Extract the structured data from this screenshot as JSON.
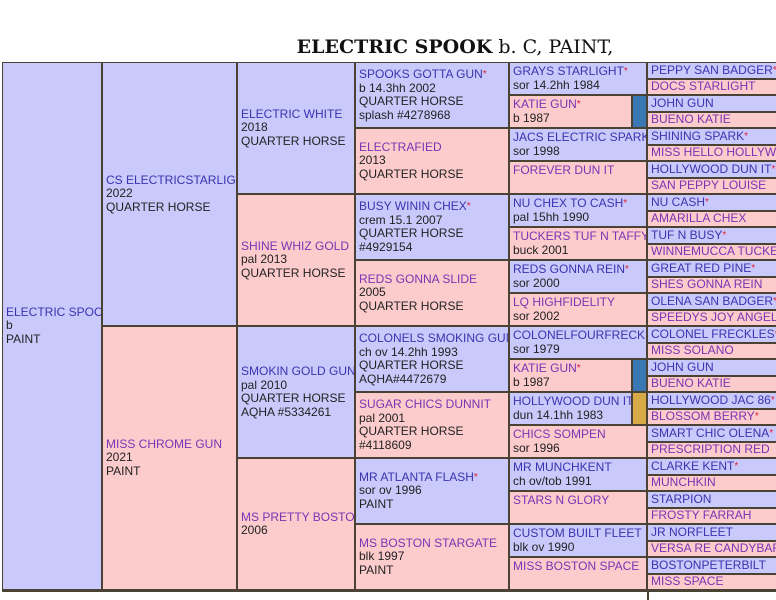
{
  "title": {
    "name": "ELECTRIC SPOOK",
    "desc": " b. C, PAINT,"
  },
  "colors": {
    "sire_bg": "#c9c9fb",
    "dam_bg": "#fccbcb",
    "border": "#4a4232",
    "star": "#e0203a",
    "bar_blue": "#3a78b4",
    "bar_gold": "#d7aa48"
  },
  "generations": [
    [
      {
        "name": "ELECTRIC SPOOK",
        "lines": [
          "b",
          "PAINT"
        ]
      }
    ],
    [
      {
        "name": "CS ELECTRICSTARLIGHT",
        "lines": [
          "2022",
          "QUARTER HORSE"
        ]
      },
      {
        "name": "MISS CHROME GUN",
        "lines": [
          "2021",
          "PAINT"
        ]
      }
    ],
    [
      {
        "name": "ELECTRIC WHITE",
        "lines": [
          "2018",
          "QUARTER HORSE"
        ]
      },
      {
        "name": "SHINE WHIZ GOLD",
        "lines": [
          "pal 2013",
          "QUARTER HORSE"
        ]
      },
      {
        "name": "SMOKIN GOLD GUN",
        "star": true,
        "lines": [
          "pal 2010",
          "QUARTER HORSE",
          "AQHA #5334261"
        ]
      },
      {
        "name": "MS PRETTY BOSTON",
        "lines": [
          "2006"
        ]
      }
    ],
    [
      {
        "name": "SPOOKS GOTTA GUN",
        "star": true,
        "lines": [
          "b 14.3hh 2002",
          "QUARTER HORSE",
          "splash #4278968"
        ]
      },
      {
        "name": "ELECTRAFIED",
        "lines": [
          "2013",
          "QUARTER HORSE"
        ]
      },
      {
        "name": "BUSY WININ CHEX",
        "star": true,
        "lines": [
          "crem 15.1 2007",
          "QUARTER HORSE",
          "#4929154"
        ]
      },
      {
        "name": "REDS GONNA SLIDE",
        "lines": [
          "2005",
          "QUARTER HORSE"
        ]
      },
      {
        "name": "COLONELS SMOKING GUN",
        "star": true,
        "lines": [
          "ch ov 14.2hh 1993",
          "QUARTER HORSE",
          "AQHA#4472679"
        ]
      },
      {
        "name": "SUGAR CHICS DUNNIT",
        "lines": [
          "pal 2001",
          "QUARTER HORSE",
          "#4118609"
        ]
      },
      {
        "name": "MR ATLANTA FLASH",
        "star": true,
        "lines": [
          "sor ov 1996",
          "PAINT"
        ]
      },
      {
        "name": "MS BOSTON STARGATE",
        "lines": [
          "blk 1997",
          "PAINT"
        ]
      }
    ],
    [
      {
        "name": "GRAYS STARLIGHT",
        "star": true,
        "lines": [
          "sor 14.2hh 1984"
        ]
      },
      {
        "name": "KATIE GUN",
        "star": true,
        "lines": [
          "b 1987"
        ],
        "bar": "blue"
      },
      {
        "name": "JACS ELECTRIC SPARK",
        "star": true,
        "lines": [
          "sor 1998"
        ]
      },
      {
        "name": "FOREVER DUN IT",
        "lines": []
      },
      {
        "name": "NU CHEX TO CASH",
        "star": true,
        "lines": [
          "pal 15hh 1990"
        ]
      },
      {
        "name": "TUCKERS TUF N TAFFY",
        "lines": [
          "buck 2001"
        ]
      },
      {
        "name": "REDS GONNA REIN",
        "star": true,
        "lines": [
          "sor 2000"
        ]
      },
      {
        "name": "LQ HIGHFIDELITY",
        "lines": [
          "sor 2002"
        ]
      },
      {
        "name": "COLONELFOURFRECKLE",
        "lines": [
          "sor 1979"
        ]
      },
      {
        "name": "KATIE GUN",
        "star": true,
        "lines": [
          "b 1987"
        ],
        "bar": "blue"
      },
      {
        "name": "HOLLYWOOD DUN IT",
        "star": true,
        "lines": [
          "dun 14.1hh 1983"
        ],
        "bar": "gold"
      },
      {
        "name": "CHICS SOMPEN",
        "lines": [
          "sor 1996"
        ]
      },
      {
        "name": "MR MUNCHKENT",
        "lines": [
          "ch ov/tob 1991"
        ]
      },
      {
        "name": "STARS N GLORY",
        "lines": []
      },
      {
        "name": "CUSTOM BUILT FLEET",
        "lines": [
          "blk ov 1990"
        ]
      },
      {
        "name": "MISS BOSTON SPACE",
        "lines": []
      }
    ],
    [
      {
        "name": "PEPPY SAN BADGER",
        "star": true
      },
      {
        "name": "DOCS STARLIGHT"
      },
      {
        "name": "JOHN GUN"
      },
      {
        "name": "BUENO KATIE"
      },
      {
        "name": "SHINING SPARK",
        "star": true
      },
      {
        "name": "MISS HELLO HOLLYWOOD"
      },
      {
        "name": "HOLLYWOOD DUN IT",
        "star": true
      },
      {
        "name": "SAN PEPPY LOUISE"
      },
      {
        "name": "NU CASH",
        "star": true
      },
      {
        "name": "AMARILLA CHEX"
      },
      {
        "name": "TUF N BUSY",
        "star": true
      },
      {
        "name": "WINNEMUCCA TUCKER"
      },
      {
        "name": "GREAT RED PINE",
        "star": true
      },
      {
        "name": "SHES GONNA REIN"
      },
      {
        "name": "OLENA SAN BADGER",
        "star": true
      },
      {
        "name": "SPEEDYS JOY ANGEL"
      },
      {
        "name": "COLONEL FRECKLES",
        "star": true
      },
      {
        "name": "MISS SOLANO"
      },
      {
        "name": "JOHN GUN"
      },
      {
        "name": "BUENO KATIE"
      },
      {
        "name": "HOLLYWOOD JAC 86",
        "star": true
      },
      {
        "name": "BLOSSOM BERRY",
        "star": true
      },
      {
        "name": "SMART CHIC OLENA",
        "star": true
      },
      {
        "name": "PRESCRIPTION RED"
      },
      {
        "name": "CLARKE KENT",
        "star": true
      },
      {
        "name": "MUNCHKIN"
      },
      {
        "name": "STARPION"
      },
      {
        "name": "FROSTY FARRAH"
      },
      {
        "name": "JR NORFLEET"
      },
      {
        "name": "VERSA RE CANDYBAR"
      },
      {
        "name": "BOSTONPETERBILT"
      },
      {
        "name": "MISS SPACE"
      }
    ]
  ],
  "star_symbol": "*"
}
